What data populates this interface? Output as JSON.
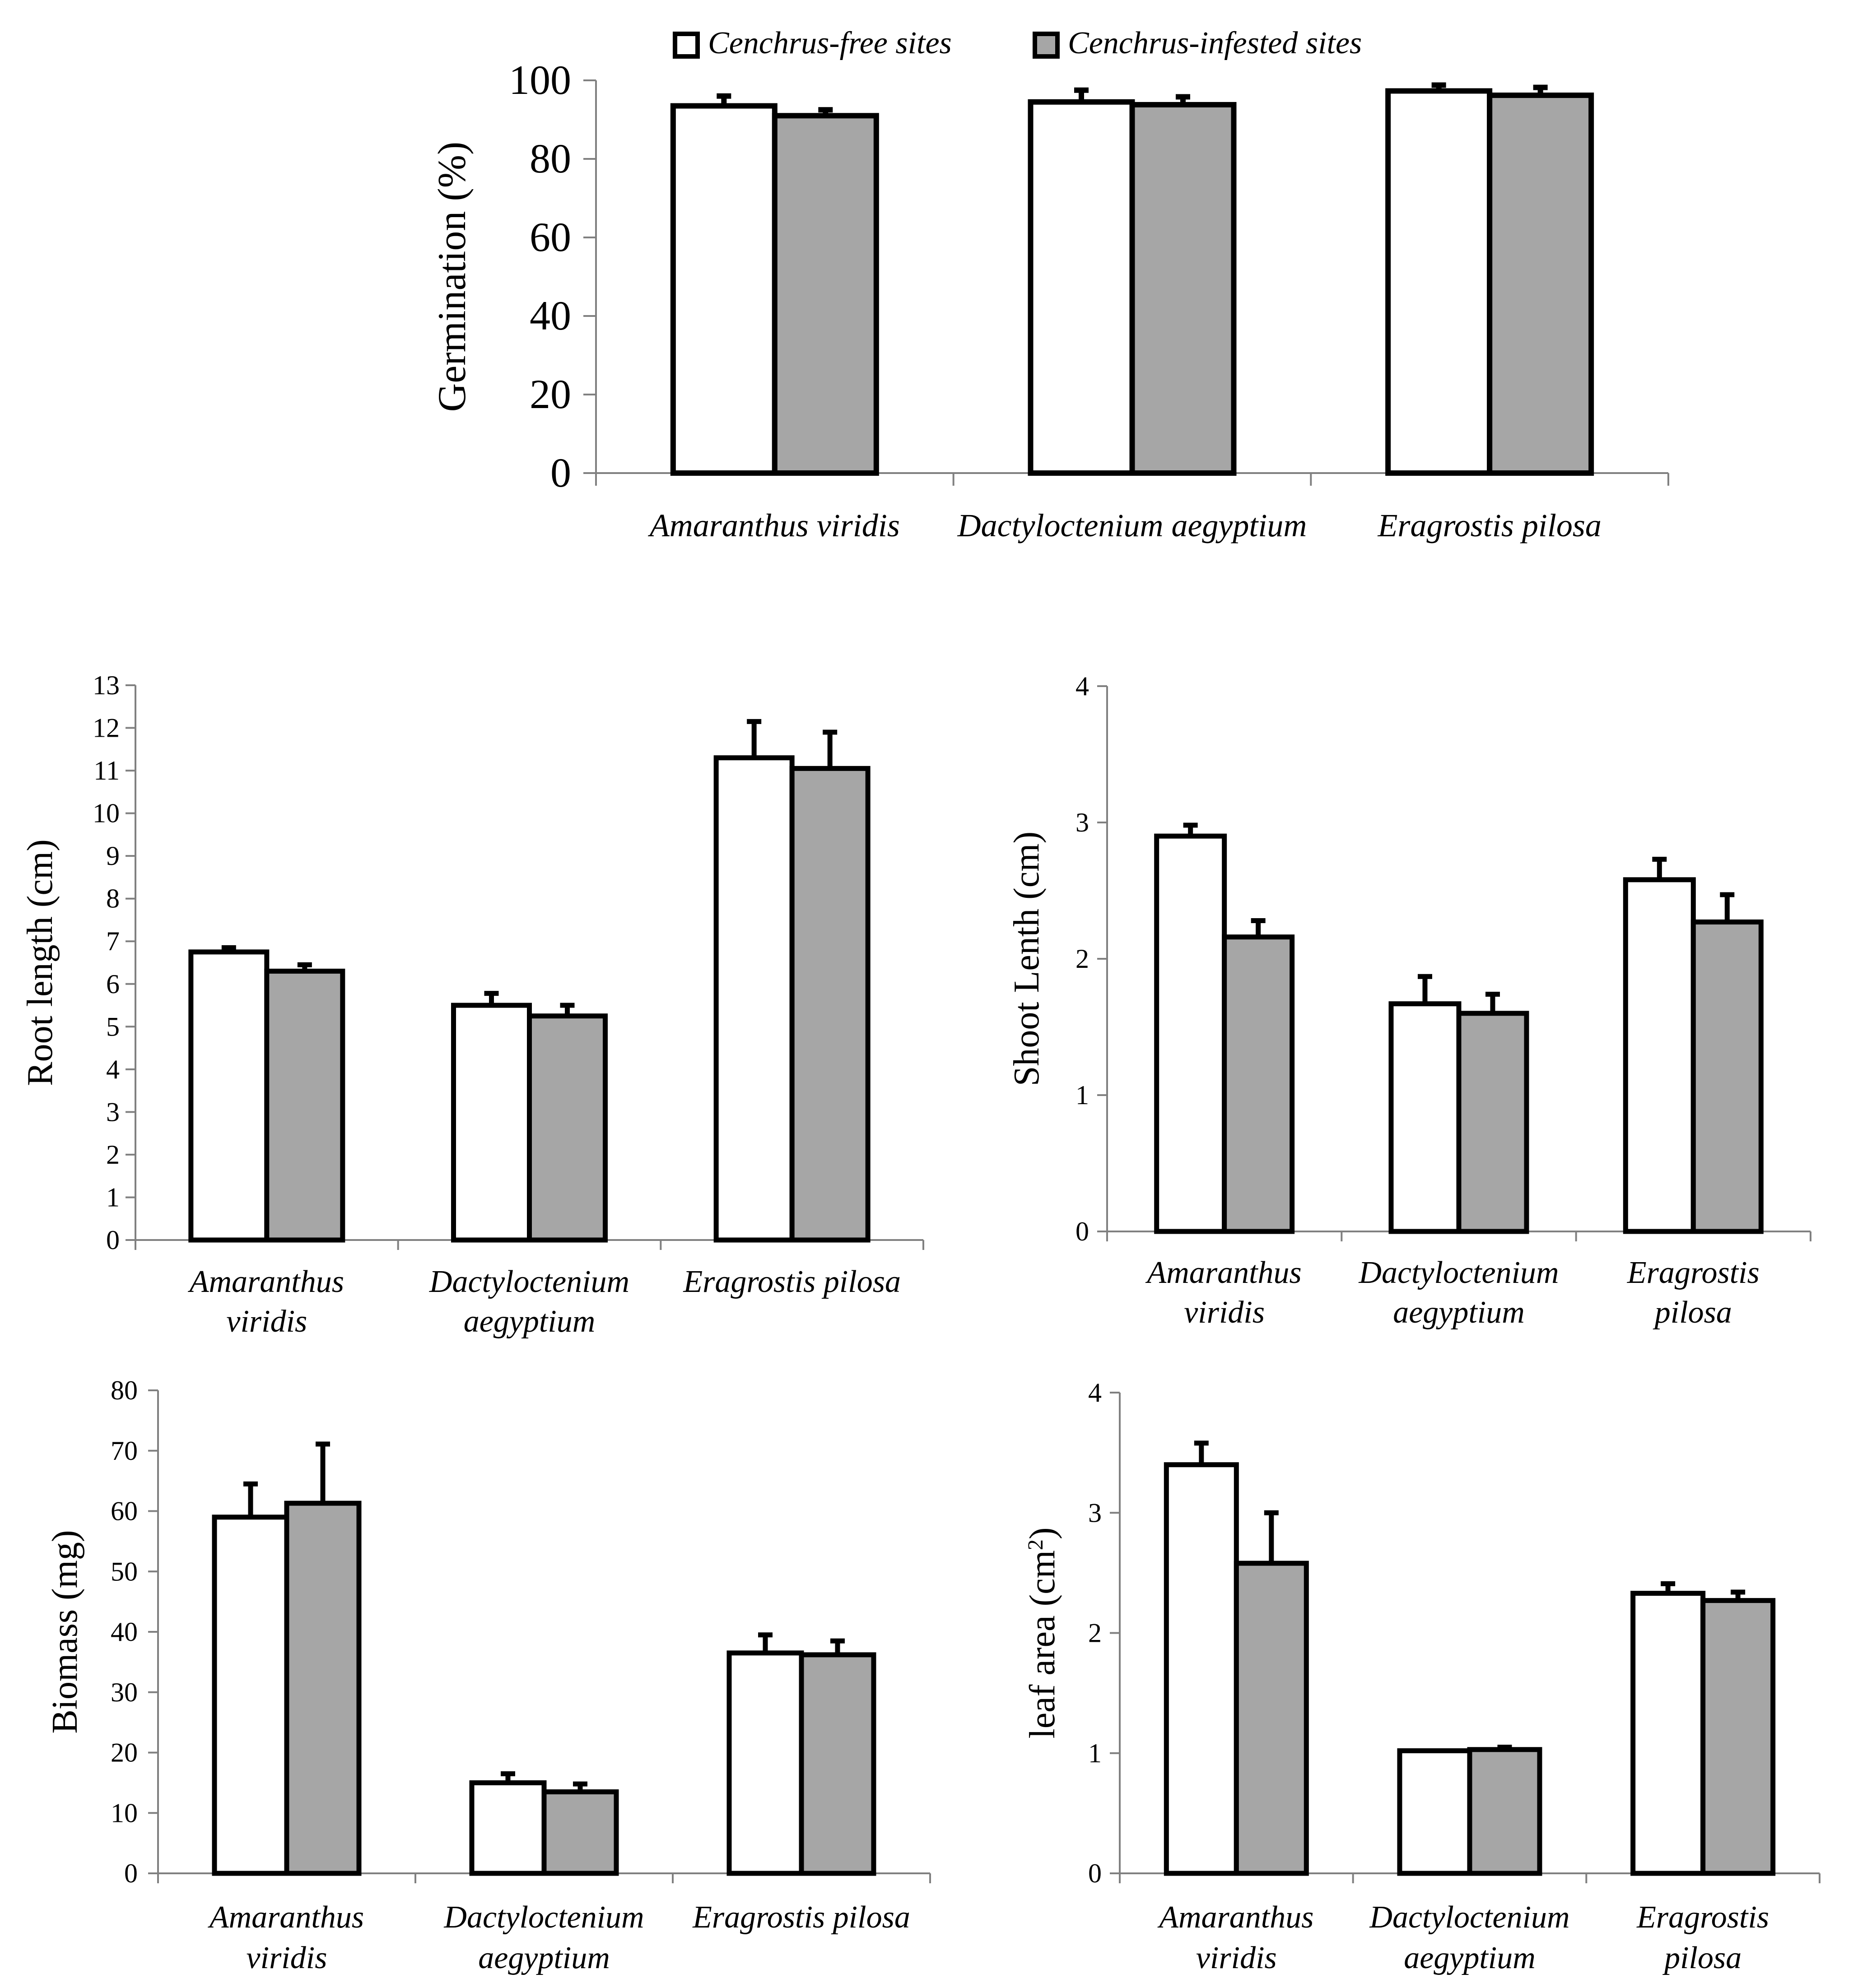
{
  "legend": {
    "series": [
      {
        "name": "Cenchrus-free sites",
        "color": "#ffffff"
      },
      {
        "name": "Cenchrus-infested sites",
        "color": "#a6a6a6"
      }
    ]
  },
  "colors": {
    "free": "#ffffff",
    "infested": "#a6a6a6",
    "stroke": "#000000"
  },
  "chart_data": [
    {
      "id": "germination",
      "type": "bar",
      "ylabel": "Germination (%)",
      "ylim": [
        0,
        100
      ],
      "yticks": [
        "0",
        "20",
        "40",
        "60",
        "80",
        "100"
      ],
      "categories": [
        [
          "Amaranthus viridis"
        ],
        [
          "Dactyloctenium aegyptium"
        ],
        [
          "Eragrostis pilosa"
        ]
      ],
      "series": [
        {
          "name": "Cenchrus-free sites",
          "values": [
            93.5,
            94.5,
            97.3
          ],
          "errors": [
            2.5,
            3.0,
            1.5
          ]
        },
        {
          "name": "Cenchrus-infested sites",
          "values": [
            91.0,
            93.8,
            96.2
          ],
          "errors": [
            1.5,
            2.0,
            2.0
          ]
        }
      ]
    },
    {
      "id": "root-length",
      "type": "bar",
      "ylabel": "Root length (cm)",
      "ylim": [
        0,
        13
      ],
      "yticks": [
        "0",
        "1",
        "2",
        "3",
        "4",
        "5",
        "6",
        "7",
        "8",
        "9",
        "10",
        "11",
        "12",
        "13"
      ],
      "categories": [
        [
          "Amaranthus",
          "viridis"
        ],
        [
          "Dactyloctenium",
          "aegyptium"
        ],
        [
          "Eragrostis pilosa"
        ]
      ],
      "series": [
        {
          "name": "Cenchrus-free sites",
          "values": [
            6.75,
            5.5,
            11.3
          ],
          "errors": [
            0.1,
            0.28,
            0.85
          ]
        },
        {
          "name": "Cenchrus-infested sites",
          "values": [
            6.3,
            5.25,
            11.05
          ],
          "errors": [
            0.15,
            0.25,
            0.85
          ]
        }
      ]
    },
    {
      "id": "shoot-length",
      "type": "bar",
      "ylabel": "Shoot Lenth (cm)",
      "ylim": [
        0,
        4
      ],
      "yticks": [
        "0",
        "1",
        "2",
        "3",
        "4"
      ],
      "categories": [
        [
          "Amaranthus",
          "viridis"
        ],
        [
          "Dactyloctenium",
          "aegyptium"
        ],
        [
          "Eragrostis",
          "pilosa"
        ]
      ],
      "series": [
        {
          "name": "Cenchrus-free sites",
          "values": [
            2.9,
            1.67,
            2.58
          ],
          "errors": [
            0.08,
            0.2,
            0.15
          ]
        },
        {
          "name": "Cenchrus-infested sites",
          "values": [
            2.16,
            1.6,
            2.27
          ],
          "errors": [
            0.12,
            0.14,
            0.2
          ]
        }
      ]
    },
    {
      "id": "biomass",
      "type": "bar",
      "ylabel": "Biomass (mg)",
      "ylim": [
        0,
        80
      ],
      "yticks": [
        "0",
        "10",
        "20",
        "30",
        "40",
        "50",
        "60",
        "70",
        "80"
      ],
      "categories": [
        [
          "Amaranthus",
          "viridis"
        ],
        [
          "Dactyloctenium",
          "aegyptium"
        ],
        [
          "Eragrostis pilosa"
        ]
      ],
      "series": [
        {
          "name": "Cenchrus-free sites",
          "values": [
            59,
            15,
            36.5
          ],
          "errors": [
            5.5,
            1.5,
            3.0
          ]
        },
        {
          "name": "Cenchrus-infested sites",
          "values": [
            61.3,
            13.5,
            36.2
          ],
          "errors": [
            9.8,
            1.3,
            2.3
          ]
        }
      ]
    },
    {
      "id": "leaf-area",
      "type": "bar",
      "ylabel": "leaf area (cm",
      "ylabel_sup": "2",
      "ylabel_end": ")",
      "ylim": [
        0,
        4
      ],
      "yticks": [
        "0",
        "1",
        "2",
        "3",
        "4"
      ],
      "categories": [
        [
          "Amaranthus",
          "viridis"
        ],
        [
          "Dactyloctenium",
          "aegyptium"
        ],
        [
          "Eragrostis",
          "pilosa"
        ]
      ],
      "series": [
        {
          "name": "Cenchrus-free sites",
          "values": [
            3.4,
            1.02,
            2.33
          ],
          "errors": [
            0.18,
            0.0,
            0.08
          ]
        },
        {
          "name": "Cenchrus-infested sites",
          "values": [
            2.58,
            1.03,
            2.27
          ],
          "errors": [
            0.42,
            0.02,
            0.07
          ]
        }
      ]
    }
  ]
}
